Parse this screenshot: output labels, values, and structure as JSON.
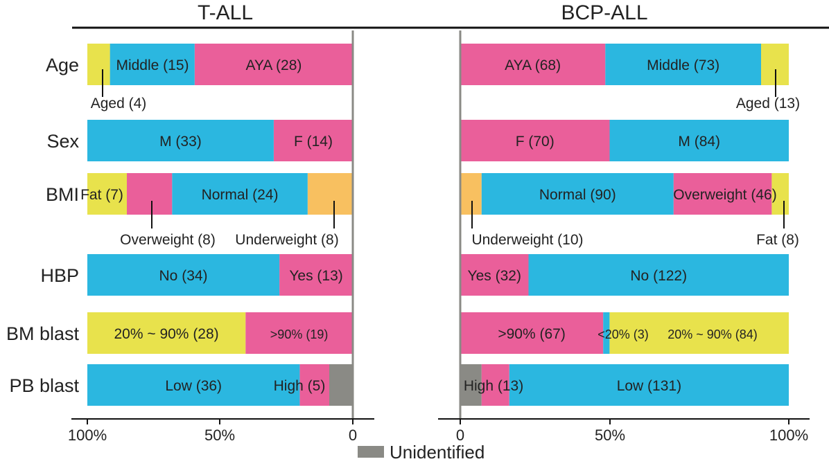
{
  "chart_data": [
    {
      "type": "bar",
      "title": "T-ALL",
      "orientation": "horizontal-stacked",
      "direction": "right-to-left",
      "categories": [
        "Age",
        "Sex",
        "BMI",
        "HBP",
        "BM blast",
        "PB blast"
      ],
      "xticks": [
        "100%",
        "50%",
        "0"
      ],
      "rows": [
        {
          "segments": [
            {
              "label": "AYA (28)",
              "value": 28,
              "color": "#ea5f9a"
            },
            {
              "label": "Middle (15)",
              "value": 15,
              "color": "#2bb7e0"
            },
            {
              "label": "Aged (4)",
              "value": 4,
              "color": "#e8e24c"
            }
          ]
        },
        {
          "segments": [
            {
              "label": "F (14)",
              "value": 14,
              "color": "#ea5f9a"
            },
            {
              "label": "M (33)",
              "value": 33,
              "color": "#2bb7e0"
            }
          ]
        },
        {
          "segments": [
            {
              "label": "Underweight (8)",
              "value": 8,
              "color": "#f8c060"
            },
            {
              "label": "Normal (24)",
              "value": 24,
              "color": "#2bb7e0"
            },
            {
              "label": "Overweight (8)",
              "value": 8,
              "color": "#ea5f9a"
            },
            {
              "label": "Fat (7)",
              "value": 7,
              "color": "#e8e24c"
            }
          ]
        },
        {
          "segments": [
            {
              "label": "Yes (13)",
              "value": 13,
              "color": "#ea5f9a"
            },
            {
              "label": "No (34)",
              "value": 34,
              "color": "#2bb7e0"
            }
          ]
        },
        {
          "segments": [
            {
              "label": ">90% (19)",
              "value": 19,
              "color": "#ea5f9a"
            },
            {
              "label": "20% ~ 90% (28)",
              "value": 28,
              "color": "#e8e24c"
            }
          ]
        },
        {
          "segments": [
            {
              "label": "",
              "value": 4,
              "color": "#8a8a85"
            },
            {
              "label": "High (5)",
              "value": 5,
              "color": "#ea5f9a"
            },
            {
              "label": "Low (36)",
              "value": 36,
              "color": "#2bb7e0"
            }
          ]
        }
      ]
    },
    {
      "type": "bar",
      "title": "BCP-ALL",
      "orientation": "horizontal-stacked",
      "direction": "left-to-right",
      "categories": [
        "Age",
        "Sex",
        "BMI",
        "HBP",
        "BM blast",
        "PB blast"
      ],
      "xticks": [
        "0",
        "50%",
        "100%"
      ],
      "rows": [
        {
          "segments": [
            {
              "label": "AYA (68)",
              "value": 68,
              "color": "#ea5f9a"
            },
            {
              "label": "Middle (73)",
              "value": 73,
              "color": "#2bb7e0"
            },
            {
              "label": "Aged (13)",
              "value": 13,
              "color": "#e8e24c"
            }
          ]
        },
        {
          "segments": [
            {
              "label": "F (70)",
              "value": 70,
              "color": "#ea5f9a"
            },
            {
              "label": "M (84)",
              "value": 84,
              "color": "#2bb7e0"
            }
          ]
        },
        {
          "segments": [
            {
              "label": "Underweight (10)",
              "value": 10,
              "color": "#f8c060"
            },
            {
              "label": "Normal (90)",
              "value": 90,
              "color": "#2bb7e0"
            },
            {
              "label": "Overweight (46)",
              "value": 46,
              "color": "#ea5f9a"
            },
            {
              "label": "Fat (8)",
              "value": 8,
              "color": "#e8e24c"
            }
          ]
        },
        {
          "segments": [
            {
              "label": "Yes (32)",
              "value": 32,
              "color": "#ea5f9a"
            },
            {
              "label": "No (122)",
              "value": 122,
              "color": "#2bb7e0"
            }
          ]
        },
        {
          "segments": [
            {
              "label": ">90% (67)",
              "value": 67,
              "color": "#ea5f9a"
            },
            {
              "label": "<20% (3)",
              "value": 3,
              "color": "#2bb7e0"
            },
            {
              "label": "20% ~ 90% (84)",
              "value": 84,
              "color": "#e8e24c"
            }
          ]
        },
        {
          "segments": [
            {
              "label": "",
              "value": 10,
              "color": "#8a8a85"
            },
            {
              "label": "High (13)",
              "value": 13,
              "color": "#ea5f9a"
            },
            {
              "label": "Low (131)",
              "value": 131,
              "color": "#2bb7e0"
            }
          ]
        }
      ]
    }
  ],
  "legend": {
    "label": "Unidentified",
    "color": "#8a8a85"
  }
}
